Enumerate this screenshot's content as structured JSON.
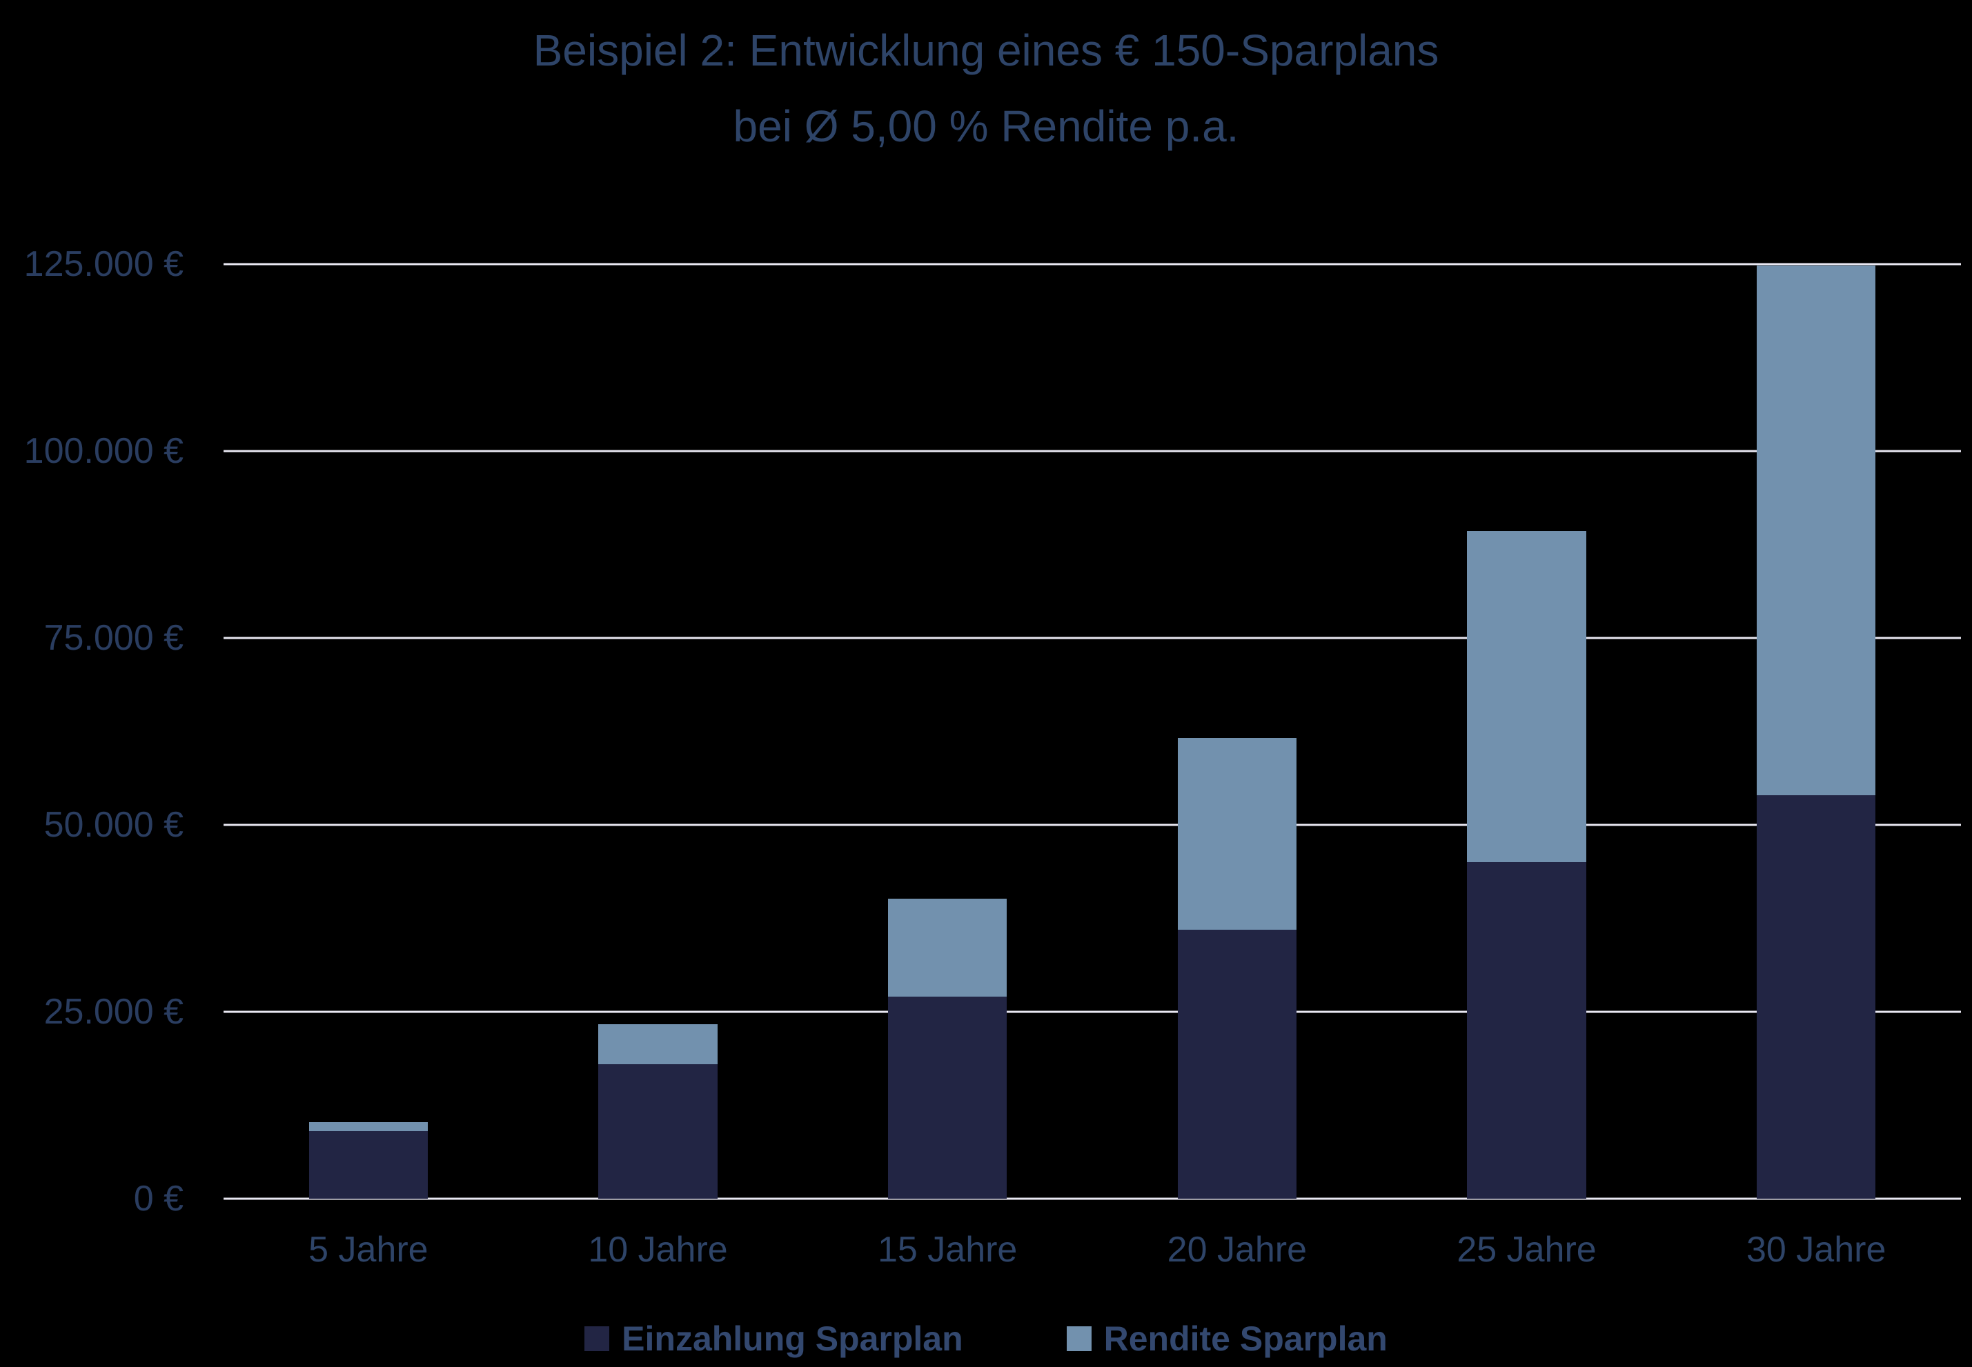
{
  "title": {
    "line1": "Beispiel 2: Entwicklung eines € 150-Sparplans",
    "line2": "bei Ø 5,00 % Rendite p.a."
  },
  "colors": {
    "background": "#000000",
    "deposit_bar": "#222544",
    "return_bar": "#7291ae",
    "gridline": "#e9e8f2",
    "title_text": "#2e4468",
    "tick_text": "#2a3d60",
    "legend_text": "#33486f"
  },
  "chart_data": {
    "type": "bar",
    "stacked": true,
    "title": "Beispiel 2: Entwicklung eines € 150-Sparplans bei Ø 5,00 % Rendite p.a.",
    "categories": [
      "5 Jahre",
      "10 Jahre",
      "15 Jahre",
      "20 Jahre",
      "25 Jahre",
      "30 Jahre"
    ],
    "series": [
      {
        "name": "Einzahlung Sparplan",
        "color": "#222544",
        "values": [
          9000,
          18000,
          27000,
          36000,
          45000,
          54000
        ]
      },
      {
        "name": "Rendite Sparplan",
        "color": "#7291ae",
        "values": [
          1200,
          5300,
          13100,
          25650,
          44300,
          70850
        ]
      }
    ],
    "xlabel": "",
    "ylabel": "",
    "ylim": [
      0,
      125000
    ],
    "y_tick_values": [
      0,
      25000,
      50000,
      75000,
      100000,
      125000
    ],
    "y_ticks": [
      "0 €",
      "25.000 €",
      "50.000 €",
      "75.000 €",
      "100.000 €",
      "125.000 €"
    ],
    "grid": true,
    "legend_position": "bottom"
  }
}
